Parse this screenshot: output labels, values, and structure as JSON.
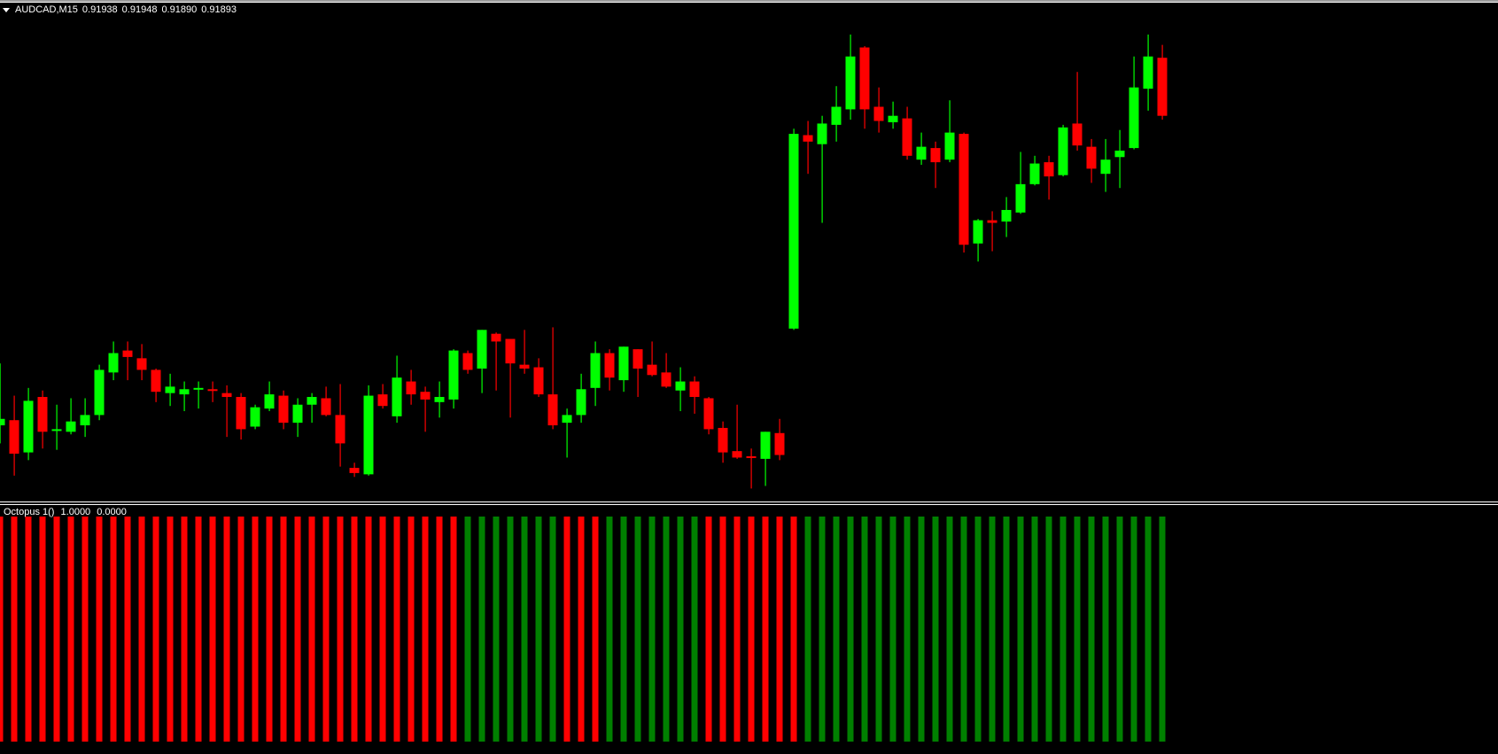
{
  "header": {
    "symbol_timeframe": "AUDCAD,M15",
    "open": "0.91938",
    "high": "0.91948",
    "low": "0.91890",
    "close": "0.91893"
  },
  "indicator": {
    "name": "Octopus 1()",
    "value1": "1.0000",
    "value2": "0.0000",
    "colors": {
      "red": "#ff0000",
      "green": "#008000"
    },
    "bar_runs": [
      {
        "color": "red",
        "count": 33
      },
      {
        "color": "green",
        "count": 7
      },
      {
        "color": "red",
        "count": 3
      },
      {
        "color": "green",
        "count": 7
      },
      {
        "color": "red",
        "count": 7
      },
      {
        "color": "green",
        "count": 26
      }
    ]
  },
  "chart_data": {
    "type": "candlestick",
    "symbol": "AUDCAD",
    "timeframe": "M15",
    "colors": {
      "bull": "#00ff00",
      "bear": "#ff0000",
      "background": "#000000"
    },
    "fields": [
      "open",
      "high",
      "low",
      "close"
    ],
    "candles": [
      [
        0.91653,
        0.91701,
        0.91639,
        0.91658
      ],
      [
        0.91657,
        0.91676,
        0.91614,
        0.91631
      ],
      [
        0.91632,
        0.91682,
        0.91626,
        0.91672
      ],
      [
        0.91675,
        0.9168,
        0.91635,
        0.91648
      ],
      [
        0.91649,
        0.91669,
        0.91634,
        0.9165
      ],
      [
        0.91648,
        0.91674,
        0.91646,
        0.91656
      ],
      [
        0.91653,
        0.91674,
        0.91644,
        0.91661
      ],
      [
        0.91661,
        0.917,
        0.91657,
        0.91696
      ],
      [
        0.91694,
        0.91718,
        0.91688,
        0.91709
      ],
      [
        0.91711,
        0.91718,
        0.91688,
        0.91706
      ],
      [
        0.91705,
        0.91716,
        0.91688,
        0.91696
      ],
      [
        0.91696,
        0.91697,
        0.91671,
        0.91679
      ],
      [
        0.91678,
        0.91693,
        0.91668,
        0.91683
      ],
      [
        0.91677,
        0.91687,
        0.91664,
        0.91681
      ],
      [
        0.91681,
        0.91687,
        0.91666,
        0.91682
      ],
      [
        0.91681,
        0.91687,
        0.91671,
        0.9168
      ],
      [
        0.91678,
        0.91684,
        0.91644,
        0.91675
      ],
      [
        0.91675,
        0.91678,
        0.91642,
        0.9165
      ],
      [
        0.91652,
        0.91669,
        0.9165,
        0.91667
      ],
      [
        0.91666,
        0.91687,
        0.91664,
        0.91677
      ],
      [
        0.91676,
        0.9168,
        0.9165,
        0.91655
      ],
      [
        0.91655,
        0.91674,
        0.91644,
        0.91669
      ],
      [
        0.91669,
        0.91678,
        0.91655,
        0.91675
      ],
      [
        0.91674,
        0.91683,
        0.9166,
        0.91661
      ],
      [
        0.91661,
        0.91685,
        0.91621,
        0.91639
      ],
      [
        0.9162,
        0.91624,
        0.91613,
        0.91616
      ],
      [
        0.91615,
        0.91684,
        0.91614,
        0.91676
      ],
      [
        0.91677,
        0.91685,
        0.91666,
        0.91668
      ],
      [
        0.9166,
        0.91707,
        0.91655,
        0.9169
      ],
      [
        0.91687,
        0.91696,
        0.91669,
        0.91677
      ],
      [
        0.91679,
        0.91683,
        0.91648,
        0.91673
      ],
      [
        0.91671,
        0.91687,
        0.91659,
        0.91675
      ],
      [
        0.91673,
        0.91712,
        0.91666,
        0.91711
      ],
      [
        0.91709,
        0.91711,
        0.91693,
        0.91696
      ],
      [
        0.91697,
        0.91727,
        0.91678,
        0.91727
      ],
      [
        0.91724,
        0.91725,
        0.9168,
        0.91718
      ],
      [
        0.9172,
        0.9172,
        0.91659,
        0.91701
      ],
      [
        0.917,
        0.91727,
        0.91693,
        0.91697
      ],
      [
        0.91698,
        0.91705,
        0.91675,
        0.91677
      ],
      [
        0.91677,
        0.91729,
        0.9165,
        0.91653
      ],
      [
        0.91655,
        0.91666,
        0.91628,
        0.91661
      ],
      [
        0.91661,
        0.91693,
        0.91655,
        0.91681
      ],
      [
        0.91682,
        0.91718,
        0.91668,
        0.91709
      ],
      [
        0.91709,
        0.91712,
        0.9168,
        0.9169
      ],
      [
        0.91688,
        0.91714,
        0.91679,
        0.91714
      ],
      [
        0.91712,
        0.91712,
        0.91675,
        0.91697
      ],
      [
        0.917,
        0.91718,
        0.91691,
        0.91692
      ],
      [
        0.91694,
        0.91709,
        0.91682,
        0.91683
      ],
      [
        0.9168,
        0.91698,
        0.91664,
        0.91687
      ],
      [
        0.91687,
        0.91691,
        0.91662,
        0.91675
      ],
      [
        0.91674,
        0.91675,
        0.91646,
        0.9165
      ],
      [
        0.91651,
        0.91656,
        0.91624,
        0.91632
      ],
      [
        0.91633,
        0.91669,
        0.91627,
        0.91628
      ],
      [
        0.91629,
        0.91635,
        0.91604,
        0.91628
      ],
      [
        0.91627,
        0.91648,
        0.91606,
        0.91648
      ],
      [
        0.91647,
        0.91658,
        0.91626,
        0.9163
      ],
      [
        0.91728,
        0.91883,
        0.91727,
        0.91879
      ],
      [
        0.91878,
        0.91889,
        0.91848,
        0.91873
      ],
      [
        0.91871,
        0.91893,
        0.9181,
        0.91887
      ],
      [
        0.91886,
        0.91916,
        0.91873,
        0.919
      ],
      [
        0.91898,
        0.91956,
        0.9189,
        0.91939
      ],
      [
        0.91946,
        0.91947,
        0.91883,
        0.91898
      ],
      [
        0.919,
        0.91915,
        0.9188,
        0.91889
      ],
      [
        0.91888,
        0.91904,
        0.91883,
        0.91893
      ],
      [
        0.91891,
        0.919,
        0.91859,
        0.91862
      ],
      [
        0.91859,
        0.9188,
        0.91855,
        0.91869
      ],
      [
        0.91868,
        0.91873,
        0.91837,
        0.91857
      ],
      [
        0.91859,
        0.91905,
        0.91857,
        0.9188
      ],
      [
        0.91879,
        0.9188,
        0.91787,
        0.91793
      ],
      [
        0.91794,
        0.91813,
        0.9178,
        0.91812
      ],
      [
        0.91812,
        0.91819,
        0.91788,
        0.9181
      ],
      [
        0.91811,
        0.9183,
        0.91799,
        0.9182
      ],
      [
        0.91818,
        0.91865,
        0.91817,
        0.9184
      ],
      [
        0.9184,
        0.91862,
        0.91839,
        0.91856
      ],
      [
        0.91857,
        0.91862,
        0.91828,
        0.91846
      ],
      [
        0.91847,
        0.91886,
        0.91846,
        0.91884
      ],
      [
        0.91887,
        0.91927,
        0.91866,
        0.9187
      ],
      [
        0.91869,
        0.91875,
        0.91841,
        0.91852
      ],
      [
        0.91848,
        0.91875,
        0.91834,
        0.91859
      ],
      [
        0.91861,
        0.91882,
        0.91837,
        0.91866
      ],
      [
        0.91868,
        0.91939,
        0.91867,
        0.91915
      ],
      [
        0.91914,
        0.91956,
        0.91897,
        0.91939
      ],
      [
        0.91938,
        0.91948,
        0.9189,
        0.91893
      ]
    ]
  }
}
